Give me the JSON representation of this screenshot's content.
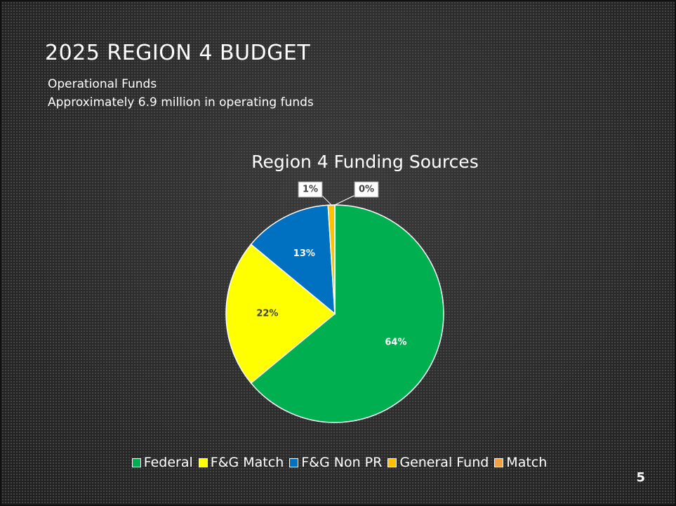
{
  "header": {
    "title": "2025 REGION 4 BUDGET",
    "lines": [
      "Operational Funds",
      "Approximately 6.9 million in operating funds"
    ]
  },
  "slide_number": "5",
  "chart_data": {
    "type": "pie",
    "title": "Region 4 Funding Sources",
    "categories": [
      "Federal",
      "F&G Match",
      "F&G Non PR",
      "General Fund",
      "Match"
    ],
    "values": [
      64,
      22,
      13,
      1,
      0
    ],
    "value_labels": [
      "64%",
      "22%",
      "13%",
      "1%",
      "0%"
    ],
    "colors": [
      "#00b050",
      "#ffff00",
      "#0070c0",
      "#ffc000",
      "#f4a040"
    ],
    "legend": "bottom"
  }
}
